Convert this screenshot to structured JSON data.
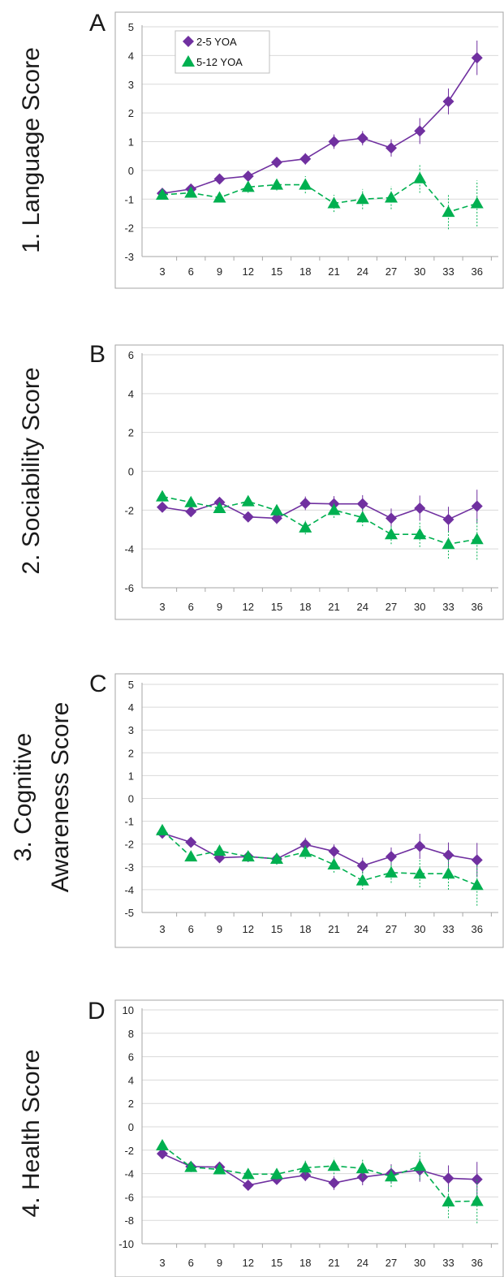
{
  "colors": {
    "series_a": "#7030a0",
    "series_b": "#00b050",
    "grid": "#d9d9d9",
    "axis": "#a6a6a6"
  },
  "legend": {
    "entries": [
      "2-5 YOA",
      "5-12 YOA"
    ]
  },
  "chart_data": [
    {
      "type": "line",
      "panel": "A",
      "ylabel": [
        "1. Language Score"
      ],
      "x": [
        3,
        6,
        9,
        12,
        15,
        18,
        21,
        24,
        27,
        30,
        33,
        36
      ],
      "ylim": [
        -3,
        5
      ],
      "yticks": [
        5,
        4,
        3,
        2,
        1,
        0,
        -1,
        -2,
        -3
      ],
      "grid": true,
      "legend_position": "top-left",
      "series": [
        {
          "name": "2-5 YOA",
          "marker": "diamond",
          "line": "solid",
          "values": [
            -0.8,
            -0.65,
            -0.3,
            -0.2,
            0.28,
            0.4,
            1.0,
            1.12,
            0.78,
            1.37,
            2.4,
            3.92
          ],
          "errors": [
            0.12,
            0.1,
            0.12,
            0.12,
            0.15,
            0.2,
            0.25,
            0.25,
            0.3,
            0.45,
            0.45,
            0.6
          ]
        },
        {
          "name": "5-12 YOA",
          "marker": "triangle",
          "line": "dashed",
          "values": [
            -0.85,
            -0.78,
            -0.95,
            -0.58,
            -0.5,
            -0.5,
            -1.15,
            -1.0,
            -0.95,
            -0.28,
            -1.45,
            -1.15
          ],
          "errors": [
            0.12,
            0.12,
            0.15,
            0.2,
            0.2,
            0.3,
            0.3,
            0.35,
            0.4,
            0.5,
            0.6,
            0.8
          ]
        }
      ]
    },
    {
      "type": "line",
      "panel": "B",
      "ylabel": [
        "2. Sociability Score"
      ],
      "x": [
        3,
        6,
        9,
        12,
        15,
        18,
        21,
        24,
        27,
        30,
        33,
        36
      ],
      "ylim": [
        -6,
        6
      ],
      "yticks": [
        6,
        4,
        2,
        0,
        -2,
        -4,
        -6
      ],
      "grid": true,
      "series": [
        {
          "name": "2-5 YOA",
          "marker": "diamond",
          "line": "solid",
          "values": [
            -1.85,
            -2.08,
            -1.6,
            -2.35,
            -2.42,
            -1.65,
            -1.68,
            -1.68,
            -2.42,
            -1.9,
            -2.48,
            -1.8
          ],
          "errors": [
            0.2,
            0.2,
            0.25,
            0.25,
            0.3,
            0.35,
            0.4,
            0.45,
            0.5,
            0.65,
            0.65,
            0.85
          ]
        },
        {
          "name": "5-12 YOA",
          "marker": "triangle",
          "line": "dashed",
          "values": [
            -1.3,
            -1.6,
            -1.9,
            -1.55,
            -2.02,
            -2.9,
            -2.0,
            -2.38,
            -3.25,
            -3.25,
            -3.75,
            -3.5
          ],
          "errors": [
            0.2,
            0.2,
            0.25,
            0.25,
            0.3,
            0.35,
            0.4,
            0.45,
            0.5,
            0.65,
            0.75,
            1.05
          ]
        }
      ]
    },
    {
      "type": "line",
      "panel": "C",
      "ylabel": [
        "3. Cognitive",
        "Awareness Score"
      ],
      "x": [
        3,
        6,
        9,
        12,
        15,
        18,
        21,
        24,
        27,
        30,
        33,
        36
      ],
      "ylim": [
        -5,
        5
      ],
      "yticks": [
        5,
        4,
        3,
        2,
        1,
        0,
        -1,
        -2,
        -3,
        -4,
        -5
      ],
      "grid": true,
      "series": [
        {
          "name": "2-5 YOA",
          "marker": "diamond",
          "line": "solid",
          "values": [
            -1.52,
            -1.92,
            -2.6,
            -2.55,
            -2.65,
            -2.02,
            -2.32,
            -2.95,
            -2.55,
            -2.1,
            -2.48,
            -2.7
          ],
          "errors": [
            0.15,
            0.15,
            0.2,
            0.2,
            0.2,
            0.3,
            0.3,
            0.35,
            0.4,
            0.55,
            0.55,
            0.75
          ]
        },
        {
          "name": "5-12 YOA",
          "marker": "triangle",
          "line": "dashed",
          "values": [
            -1.4,
            -2.55,
            -2.3,
            -2.55,
            -2.65,
            -2.35,
            -2.9,
            -3.6,
            -3.25,
            -3.3,
            -3.3,
            -3.8
          ],
          "errors": [
            0.15,
            0.15,
            0.2,
            0.2,
            0.25,
            0.3,
            0.35,
            0.4,
            0.45,
            0.6,
            0.7,
            0.9
          ]
        }
      ]
    },
    {
      "type": "line",
      "panel": "D",
      "ylabel": [
        "4. Health Score"
      ],
      "x": [
        3,
        6,
        9,
        12,
        15,
        18,
        21,
        24,
        27,
        30,
        33,
        36
      ],
      "ylim": [
        -10,
        10
      ],
      "yticks": [
        10,
        8,
        6,
        4,
        2,
        0,
        -2,
        -4,
        -6,
        -8,
        -10
      ],
      "grid": true,
      "series": [
        {
          "name": "2-5 YOA",
          "marker": "diamond",
          "line": "solid",
          "values": [
            -2.3,
            -3.4,
            -3.45,
            -5.0,
            -4.5,
            -4.15,
            -4.8,
            -4.3,
            -4.0,
            -3.7,
            -4.4,
            -4.5
          ],
          "errors": [
            0.3,
            0.3,
            0.4,
            0.4,
            0.45,
            0.5,
            0.6,
            0.7,
            0.8,
            1.0,
            1.1,
            1.5
          ]
        },
        {
          "name": "5-12 YOA",
          "marker": "triangle",
          "line": "dashed",
          "values": [
            -1.6,
            -3.45,
            -3.65,
            -4.05,
            -4.05,
            -3.5,
            -3.35,
            -3.55,
            -4.25,
            -3.35,
            -6.4,
            -6.35
          ],
          "errors": [
            0.3,
            0.35,
            0.4,
            0.45,
            0.5,
            0.6,
            0.7,
            0.8,
            0.9,
            1.2,
            1.4,
            1.9
          ]
        }
      ]
    }
  ]
}
